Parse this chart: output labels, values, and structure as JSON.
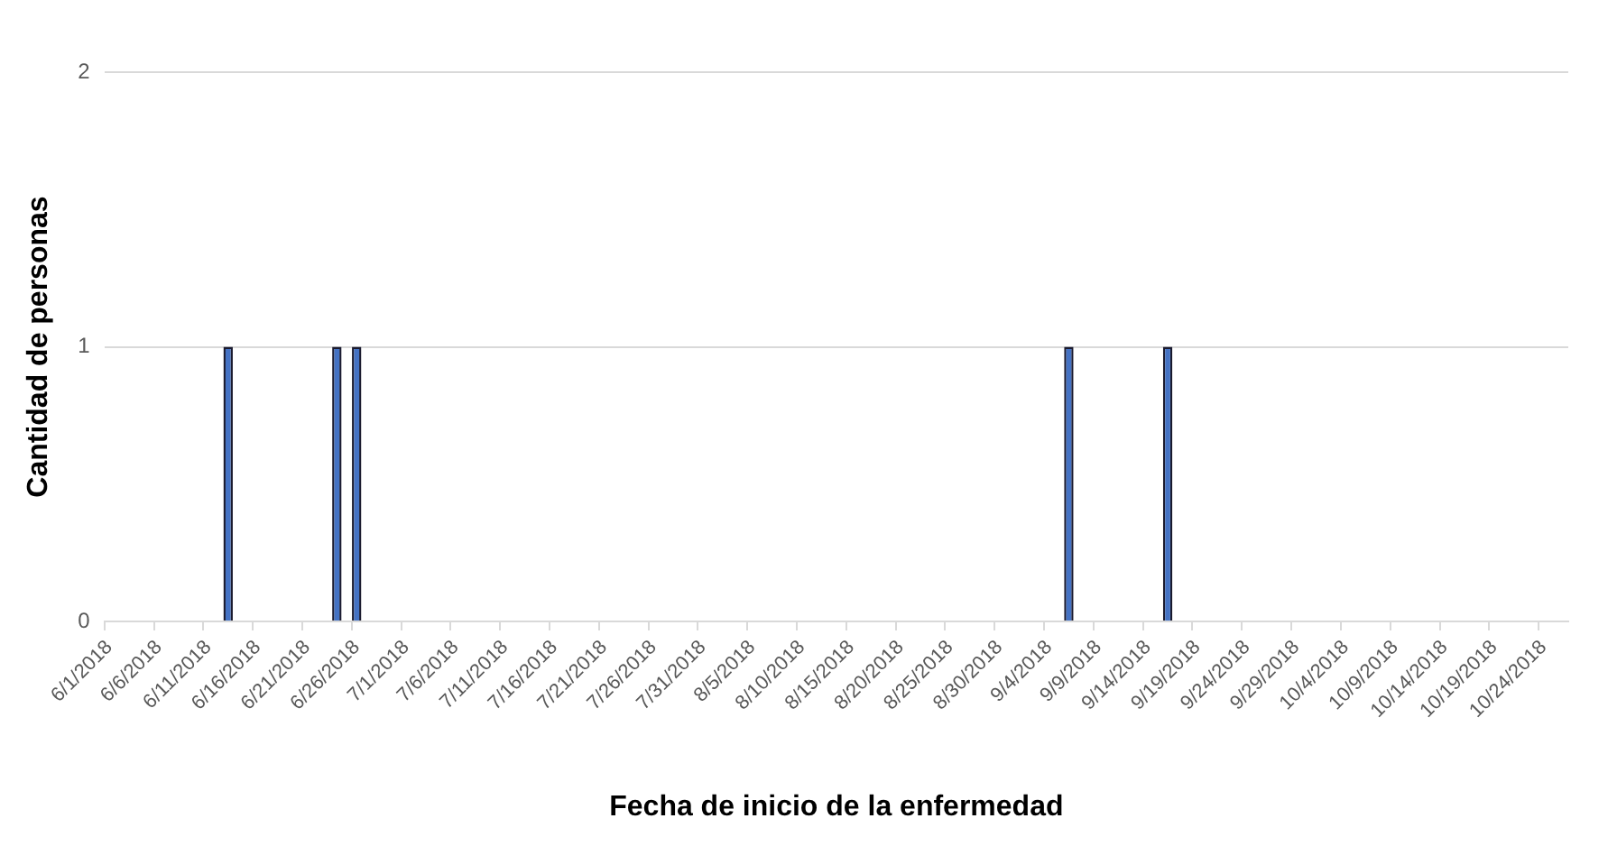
{
  "chart_data": {
    "type": "bar",
    "xlabel": "Fecha de inicio de la enfermedad",
    "ylabel": "Cantidad de personas",
    "categories": [
      "6/1/2018",
      null,
      null,
      null,
      null,
      "6/6/2018",
      null,
      null,
      null,
      null,
      "6/11/2018",
      null,
      null,
      null,
      null,
      "6/16/2018",
      null,
      null,
      null,
      null,
      "6/21/2018",
      null,
      null,
      null,
      null,
      "6/26/2018",
      null,
      null,
      null,
      null,
      "7/1/2018",
      null,
      null,
      null,
      null,
      "7/6/2018",
      null,
      null,
      null,
      null,
      "7/11/2018",
      null,
      null,
      null,
      null,
      "7/16/2018",
      null,
      null,
      null,
      null,
      "7/21/2018",
      null,
      null,
      null,
      null,
      "7/26/2018",
      null,
      null,
      null,
      null,
      "7/31/2018",
      null,
      null,
      null,
      null,
      "8/5/2018",
      null,
      null,
      null,
      null,
      "8/10/2018",
      null,
      null,
      null,
      null,
      "8/15/2018",
      null,
      null,
      null,
      null,
      "8/20/2018",
      null,
      null,
      null,
      null,
      "8/25/2018",
      null,
      null,
      null,
      null,
      "8/30/2018",
      null,
      null,
      null,
      null,
      "9/4/2018",
      null,
      null,
      null,
      null,
      "9/9/2018",
      null,
      null,
      null,
      null,
      "9/14/2018",
      null,
      null,
      null,
      null,
      "9/19/2018",
      null,
      null,
      null,
      null,
      "9/24/2018",
      null,
      null,
      null,
      null,
      "9/29/2018",
      null,
      null,
      null,
      null,
      "10/4/2018",
      null,
      null,
      null,
      null,
      "10/9/2018",
      null,
      null,
      null,
      null,
      "10/14/2018",
      null,
      null,
      null,
      null,
      "10/19/2018",
      null,
      null,
      null,
      null,
      "10/24/2018",
      null,
      null
    ],
    "values": [
      0,
      0,
      0,
      0,
      0,
      0,
      0,
      0,
      0,
      0,
      0,
      0,
      1,
      0,
      0,
      0,
      0,
      0,
      0,
      0,
      0,
      0,
      0,
      1,
      0,
      1,
      0,
      0,
      0,
      0,
      0,
      0,
      0,
      0,
      0,
      0,
      0,
      0,
      0,
      0,
      0,
      0,
      0,
      0,
      0,
      0,
      0,
      0,
      0,
      0,
      0,
      0,
      0,
      0,
      0,
      0,
      0,
      0,
      0,
      0,
      0,
      0,
      0,
      0,
      0,
      0,
      0,
      0,
      0,
      0,
      0,
      0,
      0,
      0,
      0,
      0,
      0,
      0,
      0,
      0,
      0,
      0,
      0,
      0,
      0,
      0,
      0,
      0,
      0,
      0,
      0,
      0,
      0,
      0,
      0,
      0,
      0,
      1,
      0,
      0,
      0,
      0,
      0,
      0,
      0,
      0,
      0,
      1,
      0,
      0,
      0,
      0,
      0,
      0,
      0,
      0,
      0,
      0,
      0,
      0,
      0,
      0,
      0,
      0,
      0,
      0,
      0,
      0,
      0,
      0,
      0,
      0,
      0,
      0,
      0,
      0,
      0,
      0,
      0,
      0,
      0,
      0,
      0,
      0,
      0,
      0,
      0,
      0
    ],
    "color": "#4472c4",
    "ylim": [
      0,
      2
    ],
    "yticks": [
      0,
      1,
      2
    ],
    "grid": "y",
    "legend": false
  }
}
